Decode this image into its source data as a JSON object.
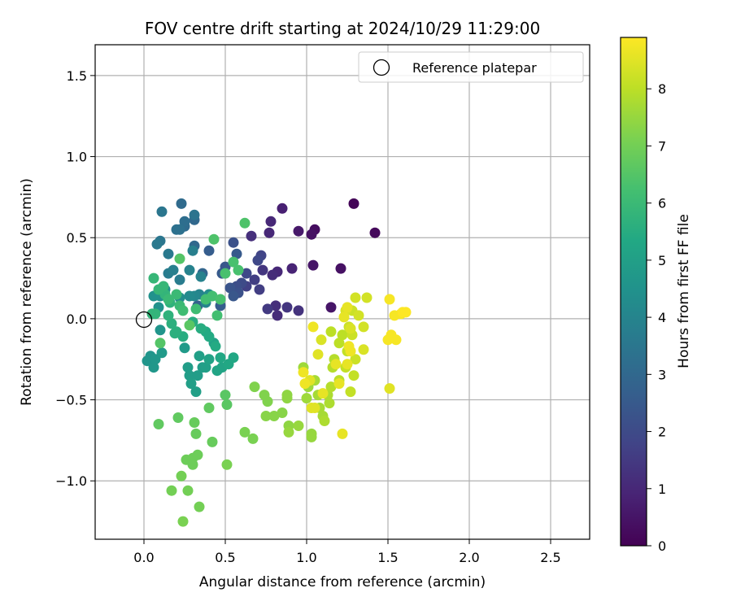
{
  "chart_data": {
    "type": "scatter",
    "title": "FOV centre drift starting at 2024/10/29 11:29:00",
    "xlabel": "Angular distance from reference (arcmin)",
    "ylabel": "Rotation from reference (arcmin)",
    "xlim": [
      -0.3,
      2.74
    ],
    "ylim": [
      -1.36,
      1.69
    ],
    "xticks": [
      0.0,
      0.5,
      1.0,
      1.5,
      2.0,
      2.5
    ],
    "xtick_labels": [
      "0.0",
      "0.5",
      "1.0",
      "1.5",
      "2.0",
      "2.5"
    ],
    "yticks": [
      -1.0,
      -0.5,
      0.0,
      0.5,
      1.0,
      1.5
    ],
    "ytick_labels": [
      "−1.0",
      "−0.5",
      "0.0",
      "0.5",
      "1.0",
      "1.5"
    ],
    "grid": true,
    "colormap": "viridis",
    "colorbar": {
      "label": "Hours from first FF file",
      "min": 0,
      "max": 8.9,
      "ticks": [
        0,
        1,
        2,
        3,
        4,
        5,
        6,
        7,
        8
      ],
      "tick_labels": [
        "0",
        "1",
        "2",
        "3",
        "4",
        "5",
        "6",
        "7",
        "8"
      ]
    },
    "reference": {
      "x": 0.0,
      "y": 0.0,
      "legend_label": "Reference platepar",
      "legend_position": "upper right"
    },
    "points": [
      [
        1.29,
        0.71,
        0.1
      ],
      [
        1.42,
        0.53,
        0.2
      ],
      [
        1.05,
        0.55,
        0.3
      ],
      [
        1.03,
        0.52,
        0.4
      ],
      [
        0.95,
        0.54,
        0.6
      ],
      [
        1.21,
        0.31,
        0.4
      ],
      [
        1.04,
        0.33,
        0.5
      ],
      [
        1.15,
        0.07,
        0.5
      ],
      [
        0.85,
        0.68,
        0.8
      ],
      [
        0.78,
        0.6,
        1.0
      ],
      [
        0.77,
        0.53,
        1.0
      ],
      [
        0.66,
        0.51,
        1.2
      ],
      [
        0.91,
        0.31,
        0.9
      ],
      [
        0.82,
        0.29,
        1.0
      ],
      [
        0.79,
        0.27,
        1.1
      ],
      [
        0.73,
        0.3,
        1.4
      ],
      [
        0.81,
        0.08,
        1.2
      ],
      [
        0.82,
        0.02,
        1.1
      ],
      [
        0.95,
        0.05,
        1.3
      ],
      [
        0.88,
        0.07,
        1.4
      ],
      [
        0.76,
        0.06,
        1.5
      ],
      [
        0.71,
        0.18,
        1.6
      ],
      [
        0.68,
        0.24,
        1.6
      ],
      [
        0.63,
        0.2,
        1.7
      ],
      [
        0.72,
        0.39,
        1.8
      ],
      [
        0.7,
        0.36,
        1.9
      ],
      [
        0.63,
        0.28,
        1.9
      ],
      [
        0.6,
        0.22,
        2.0
      ],
      [
        0.57,
        0.2,
        2.1
      ],
      [
        0.58,
        0.16,
        2.2
      ],
      [
        0.55,
        0.47,
        2.2
      ],
      [
        0.53,
        0.19,
        2.3
      ],
      [
        0.55,
        0.14,
        2.4
      ],
      [
        0.5,
        0.32,
        2.4
      ],
      [
        0.48,
        0.28,
        2.5
      ],
      [
        0.57,
        0.4,
        2.5
      ],
      [
        0.47,
        0.08,
        2.6
      ],
      [
        0.4,
        0.42,
        2.6
      ],
      [
        0.33,
        0.08,
        2.7
      ],
      [
        0.36,
        0.28,
        2.9
      ],
      [
        0.31,
        0.45,
        3.0
      ],
      [
        0.31,
        0.61,
        3.0
      ],
      [
        0.23,
        0.71,
        3.1
      ],
      [
        0.25,
        0.57,
        3.1
      ],
      [
        0.25,
        0.6,
        3.2
      ],
      [
        0.2,
        0.55,
        3.3
      ],
      [
        0.22,
        0.55,
        3.3
      ],
      [
        0.31,
        0.64,
        3.4
      ],
      [
        0.11,
        0.66,
        3.5
      ],
      [
        0.1,
        0.48,
        3.5
      ],
      [
        0.08,
        0.46,
        3.6
      ],
      [
        0.15,
        0.4,
        3.6
      ],
      [
        0.15,
        0.28,
        3.7
      ],
      [
        0.22,
        0.24,
        3.7
      ],
      [
        0.18,
        0.3,
        3.8
      ],
      [
        0.3,
        0.42,
        3.8
      ],
      [
        0.28,
        0.3,
        3.9
      ],
      [
        0.35,
        0.26,
        3.9
      ],
      [
        0.34,
        0.15,
        4.0
      ],
      [
        0.38,
        0.1,
        4.0
      ],
      [
        0.31,
        0.14,
        4.1
      ],
      [
        0.28,
        0.14,
        4.2
      ],
      [
        0.4,
        0.15,
        4.3
      ],
      [
        0.22,
        0.13,
        4.3
      ],
      [
        0.13,
        0.18,
        4.4
      ],
      [
        0.1,
        0.14,
        4.4
      ],
      [
        0.09,
        0.07,
        4.5
      ],
      [
        0.06,
        0.14,
        4.5
      ],
      [
        0.1,
        -0.07,
        4.6
      ],
      [
        0.02,
        -0.26,
        4.6
      ],
      [
        0.04,
        -0.23,
        4.6
      ],
      [
        0.06,
        -0.3,
        4.7
      ],
      [
        0.07,
        -0.25,
        4.7
      ],
      [
        0.11,
        -0.21,
        4.8
      ],
      [
        0.25,
        -0.18,
        4.8
      ],
      [
        0.27,
        -0.3,
        4.9
      ],
      [
        0.28,
        -0.35,
        4.9
      ],
      [
        0.29,
        -0.4,
        5.0
      ],
      [
        0.32,
        -0.45,
        5.0
      ],
      [
        0.33,
        -0.35,
        4.9
      ],
      [
        0.36,
        -0.3,
        4.9
      ],
      [
        0.34,
        -0.23,
        5.0
      ],
      [
        0.38,
        -0.3,
        5.0
      ],
      [
        0.4,
        -0.25,
        5.1
      ],
      [
        0.43,
        -0.15,
        5.1
      ],
      [
        0.45,
        -0.32,
        5.2
      ],
      [
        0.48,
        -0.3,
        5.2
      ],
      [
        0.52,
        -0.28,
        5.3
      ],
      [
        0.55,
        -0.24,
        5.3
      ],
      [
        0.47,
        -0.24,
        5.3
      ],
      [
        0.44,
        -0.17,
        5.4
      ],
      [
        0.4,
        -0.11,
        5.4
      ],
      [
        0.38,
        -0.08,
        5.4
      ],
      [
        0.35,
        -0.06,
        5.5
      ],
      [
        0.3,
        -0.02,
        5.5
      ],
      [
        0.24,
        -0.11,
        5.5
      ],
      [
        0.2,
        -0.08,
        5.6
      ],
      [
        0.19,
        -0.09,
        5.6
      ],
      [
        0.17,
        -0.03,
        5.6
      ],
      [
        0.15,
        0.02,
        5.7
      ],
      [
        0.16,
        0.1,
        5.7
      ],
      [
        0.13,
        0.15,
        5.8
      ],
      [
        0.07,
        0.03,
        5.8
      ],
      [
        0.05,
        0.03,
        5.8
      ],
      [
        0.06,
        0.25,
        5.9
      ],
      [
        0.09,
        0.18,
        5.9
      ],
      [
        0.12,
        0.2,
        5.9
      ],
      [
        0.15,
        0.12,
        6.0
      ],
      [
        0.2,
        0.15,
        6.0
      ],
      [
        0.22,
        0.08,
        6.0
      ],
      [
        0.24,
        0.05,
        6.1
      ],
      [
        0.32,
        0.06,
        6.1
      ],
      [
        0.38,
        0.12,
        6.2
      ],
      [
        0.42,
        0.14,
        6.2
      ],
      [
        0.45,
        0.02,
        6.2
      ],
      [
        0.47,
        0.12,
        6.3
      ],
      [
        0.5,
        0.28,
        6.3
      ],
      [
        0.55,
        0.35,
        6.3
      ],
      [
        0.58,
        0.3,
        6.3
      ],
      [
        0.43,
        0.49,
        6.4
      ],
      [
        0.62,
        0.59,
        6.4
      ],
      [
        0.22,
        0.37,
        6.5
      ],
      [
        0.1,
        -0.15,
        6.5
      ],
      [
        0.28,
        -0.04,
        6.6
      ],
      [
        0.5,
        -0.47,
        6.6
      ],
      [
        0.51,
        -0.53,
        6.6
      ],
      [
        0.4,
        -0.55,
        6.7
      ],
      [
        0.09,
        -0.65,
        6.7
      ],
      [
        0.21,
        -0.61,
        6.7
      ],
      [
        0.31,
        -0.64,
        6.8
      ],
      [
        0.32,
        -0.71,
        6.8
      ],
      [
        0.42,
        -0.76,
        6.8
      ],
      [
        0.26,
        -0.87,
        6.9
      ],
      [
        0.3,
        -0.86,
        6.9
      ],
      [
        0.33,
        -0.84,
        6.9
      ],
      [
        0.3,
        -0.9,
        6.9
      ],
      [
        0.23,
        -0.97,
        7.0
      ],
      [
        0.17,
        -1.06,
        7.0
      ],
      [
        0.27,
        -1.06,
        7.0
      ],
      [
        0.34,
        -1.16,
        7.0
      ],
      [
        0.24,
        -1.25,
        7.1
      ],
      [
        0.51,
        -0.9,
        7.1
      ],
      [
        0.62,
        -0.7,
        7.1
      ],
      [
        0.67,
        -0.74,
        7.1
      ],
      [
        0.68,
        -0.42,
        7.2
      ],
      [
        0.74,
        -0.47,
        7.2
      ],
      [
        0.76,
        -0.51,
        7.2
      ],
      [
        0.75,
        -0.6,
        7.3
      ],
      [
        0.8,
        -0.6,
        7.3
      ],
      [
        0.85,
        -0.58,
        7.3
      ],
      [
        0.88,
        -0.47,
        7.4
      ],
      [
        0.88,
        -0.49,
        7.4
      ],
      [
        0.89,
        -0.66,
        7.4
      ],
      [
        0.89,
        -0.7,
        7.5
      ],
      [
        0.95,
        -0.66,
        7.5
      ],
      [
        1.03,
        -0.71,
        7.5
      ],
      [
        1.03,
        -0.73,
        7.5
      ],
      [
        1.0,
        -0.49,
        7.6
      ],
      [
        1.01,
        -0.42,
        7.6
      ],
      [
        0.98,
        -0.3,
        7.6
      ],
      [
        1.05,
        -0.38,
        7.7
      ],
      [
        1.07,
        -0.47,
        7.7
      ],
      [
        1.08,
        -0.55,
        7.7
      ],
      [
        1.1,
        -0.6,
        7.7
      ],
      [
        1.11,
        -0.63,
        7.8
      ],
      [
        1.13,
        -0.47,
        7.8
      ],
      [
        1.14,
        -0.52,
        7.8
      ],
      [
        1.15,
        -0.42,
        7.9
      ],
      [
        1.16,
        -0.3,
        7.9
      ],
      [
        1.17,
        -0.25,
        7.9
      ],
      [
        1.15,
        -0.08,
        8.0
      ],
      [
        1.2,
        -0.15,
        8.0
      ],
      [
        1.22,
        -0.1,
        8.0
      ],
      [
        1.2,
        -0.38,
        8.0
      ],
      [
        1.24,
        -0.3,
        8.1
      ],
      [
        1.25,
        -0.2,
        8.1
      ],
      [
        1.27,
        -0.45,
        8.1
      ],
      [
        1.29,
        -0.35,
        8.1
      ],
      [
        1.3,
        -0.25,
        8.2
      ],
      [
        1.28,
        -0.1,
        8.2
      ],
      [
        1.26,
        -0.05,
        8.2
      ],
      [
        1.28,
        0.05,
        8.2
      ],
      [
        1.3,
        0.13,
        8.3
      ],
      [
        1.32,
        0.02,
        8.3
      ],
      [
        1.35,
        -0.05,
        8.3
      ],
      [
        1.37,
        0.13,
        8.3
      ],
      [
        1.35,
        -0.19,
        8.4
      ],
      [
        1.24,
        0.05,
        8.4
      ],
      [
        1.27,
        -0.06,
        8.4
      ],
      [
        1.09,
        -0.13,
        8.4
      ],
      [
        1.07,
        -0.22,
        8.5
      ],
      [
        1.02,
        -0.38,
        8.5
      ],
      [
        1.03,
        -0.55,
        8.5
      ],
      [
        1.05,
        -0.55,
        8.5
      ],
      [
        1.1,
        -0.46,
        8.6
      ],
      [
        1.18,
        -0.28,
        8.6
      ],
      [
        1.2,
        -0.4,
        8.6
      ],
      [
        1.22,
        -0.71,
        8.6
      ],
      [
        1.25,
        -0.28,
        8.6
      ],
      [
        1.26,
        -0.17,
        8.7
      ],
      [
        1.27,
        -0.2,
        8.7
      ],
      [
        1.04,
        -0.05,
        8.7
      ],
      [
        0.98,
        -0.33,
        8.7
      ],
      [
        0.99,
        -0.4,
        8.7
      ],
      [
        1.5,
        -0.13,
        8.8
      ],
      [
        1.52,
        -0.1,
        8.8
      ],
      [
        1.55,
        -0.13,
        8.8
      ],
      [
        1.51,
        0.12,
        8.8
      ],
      [
        1.54,
        0.02,
        8.8
      ],
      [
        1.58,
        0.03,
        8.8
      ],
      [
        1.59,
        0.04,
        8.9
      ],
      [
        1.61,
        0.04,
        8.9
      ],
      [
        1.51,
        -0.43,
        8.5
      ],
      [
        1.25,
        0.07,
        8.6
      ],
      [
        1.23,
        0.01,
        8.6
      ]
    ]
  }
}
